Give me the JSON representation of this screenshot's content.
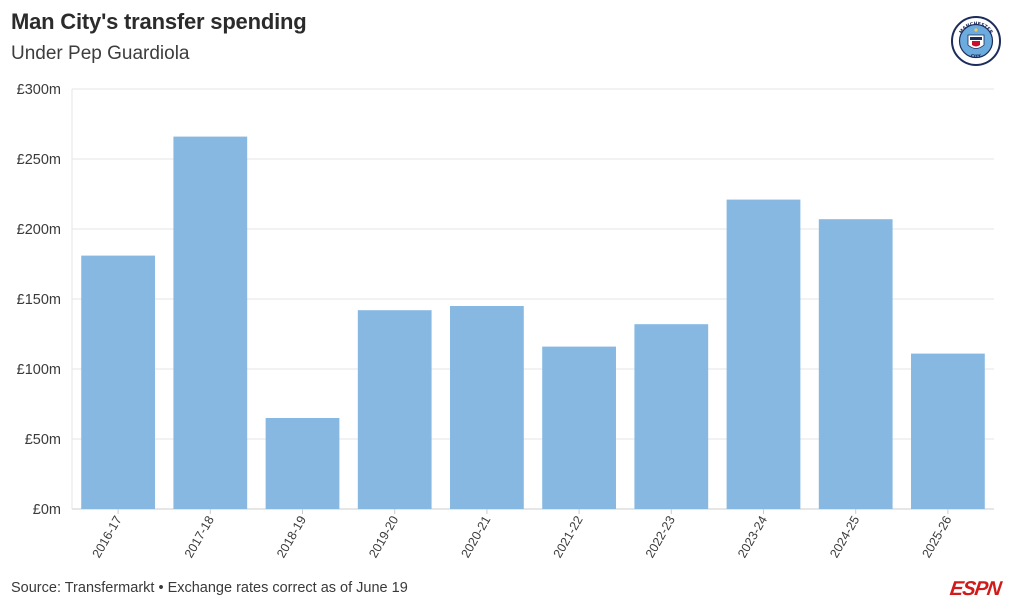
{
  "header": {
    "title": "Man City's transfer spending",
    "subtitle": "Under Pep Guardiola"
  },
  "badge": {
    "icon": "man-city-crest-icon",
    "text_top": "MANCHESTER",
    "text_bottom": "CITY"
  },
  "footer": {
    "source": "Source: Transfermarkt • Exchange rates correct as of June 19",
    "brand": "ESPN"
  },
  "colors": {
    "bar": "#86b8e2",
    "grid": "#e6e6e6",
    "axis": "#cccccc",
    "brand": "#d11a1a",
    "crest_blue": "#6cabdd",
    "crest_navy": "#1c2c5b"
  },
  "chart_data": {
    "type": "bar",
    "title": "Man City's transfer spending",
    "subtitle": "Under Pep Guardiola",
    "categories": [
      "2016-17",
      "2017-18",
      "2018-19",
      "2019-20",
      "2020-21",
      "2021-22",
      "2022-23",
      "2023-24",
      "2024-25",
      "2025-26"
    ],
    "values": [
      181,
      266,
      65,
      142,
      145,
      116,
      132,
      221,
      207,
      111
    ],
    "unit": "£m",
    "ylim": [
      0,
      300
    ],
    "yticks": [
      0,
      50,
      100,
      150,
      200,
      250,
      300
    ],
    "ytick_labels": [
      "£0m",
      "£50m",
      "£100m",
      "£150m",
      "£200m",
      "£250m",
      "£300m"
    ],
    "xlabel": "",
    "ylabel": "",
    "grid": true,
    "legend": "none"
  }
}
